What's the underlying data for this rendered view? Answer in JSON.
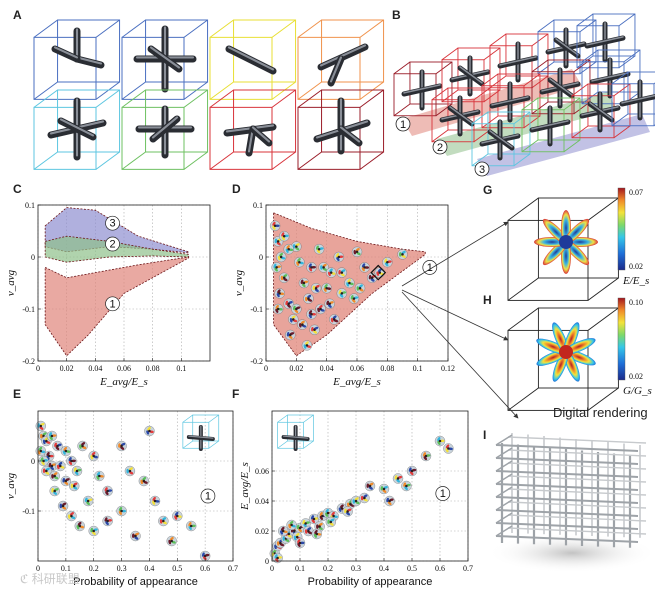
{
  "panels": {
    "A": "A",
    "B": "B",
    "C": "C",
    "D": "D",
    "E": "E",
    "F": "F",
    "G": "G",
    "H": "H",
    "I": "I"
  },
  "regions": {
    "r1": "1",
    "r2": "2",
    "r3": "3"
  },
  "colors": {
    "region1": "#e0857a",
    "region2": "#8fc08a",
    "region3": "#8f8fd0",
    "cell_blue": "#4a6fc0",
    "cell_cyan": "#5cc6e0",
    "cell_green": "#6dc060",
    "cell_yellow": "#e8df33",
    "cell_orange": "#f0924b",
    "cell_red": "#d8333a",
    "cell_darkred": "#9a1c28"
  },
  "chart_data": [
    {
      "id": "C",
      "type": "area",
      "xlabel": "E_avg/E_s",
      "ylabel": "ν_avg",
      "xlim": [
        0,
        0.12
      ],
      "ylim": [
        -0.2,
        0.1
      ],
      "xticks": [
        "0",
        "0.02",
        "0.04",
        "0.06",
        "0.08",
        "0.1"
      ],
      "yticks": [
        "-0.2",
        "-0.1",
        "0",
        "0.1"
      ],
      "series": [
        {
          "name": "1",
          "upper": [
            [
              0.005,
              -0.02
            ],
            [
              0.02,
              -0.04
            ],
            [
              0.04,
              -0.03
            ],
            [
              0.07,
              -0.015
            ],
            [
              0.105,
              0.0
            ]
          ],
          "lower": [
            [
              0.005,
              -0.13
            ],
            [
              0.02,
              -0.19
            ],
            [
              0.035,
              -0.15
            ],
            [
              0.06,
              -0.07
            ],
            [
              0.105,
              -0.002
            ]
          ]
        },
        {
          "name": "2",
          "upper": [
            [
              0.005,
              0.03
            ],
            [
              0.02,
              0.04
            ],
            [
              0.05,
              0.03
            ],
            [
              0.08,
              0.015
            ],
            [
              0.105,
              0.005
            ]
          ],
          "lower": [
            [
              0.005,
              0.0
            ],
            [
              0.02,
              -0.01
            ],
            [
              0.05,
              0.0
            ],
            [
              0.08,
              0.002
            ],
            [
              0.105,
              0.0
            ]
          ]
        },
        {
          "name": "3",
          "upper": [
            [
              0.005,
              0.06
            ],
            [
              0.02,
              0.095
            ],
            [
              0.04,
              0.09
            ],
            [
              0.07,
              0.04
            ],
            [
              0.105,
              0.01
            ]
          ],
          "lower": [
            [
              0.005,
              0.02
            ],
            [
              0.02,
              0.01
            ],
            [
              0.05,
              0.02
            ],
            [
              0.08,
              0.015
            ],
            [
              0.105,
              0.008
            ]
          ]
        }
      ]
    },
    {
      "id": "D",
      "type": "scatter",
      "xlabel": "E_avg/E_s",
      "ylabel": "ν_avg",
      "xlim": [
        0,
        0.12
      ],
      "ylim": [
        -0.2,
        0.1
      ],
      "xticks": [
        "0",
        "0.02",
        "0.04",
        "0.06",
        "0.08",
        "0.1",
        "0.12"
      ],
      "yticks": [
        "-0.2",
        "-0.1",
        "0",
        "0.1"
      ],
      "region_upper": [
        [
          0.005,
          0.085
        ],
        [
          0.03,
          0.055
        ],
        [
          0.06,
          0.03
        ],
        [
          0.09,
          0.015
        ],
        [
          0.105,
          0.01
        ]
      ],
      "region_lower": [
        [
          0.005,
          -0.13
        ],
        [
          0.02,
          -0.19
        ],
        [
          0.04,
          -0.15
        ],
        [
          0.07,
          -0.07
        ],
        [
          0.105,
          0.005
        ]
      ],
      "highlight": [
        0.074,
        -0.03
      ],
      "points": [
        [
          0.006,
          0.06
        ],
        [
          0.008,
          0.03
        ],
        [
          0.01,
          0.0
        ],
        [
          0.007,
          -0.02
        ],
        [
          0.012,
          -0.04
        ],
        [
          0.009,
          -0.07
        ],
        [
          0.015,
          -0.09
        ],
        [
          0.018,
          -0.12
        ],
        [
          0.012,
          0.04
        ],
        [
          0.02,
          0.02
        ],
        [
          0.022,
          -0.01
        ],
        [
          0.025,
          -0.05
        ],
        [
          0.028,
          -0.08
        ],
        [
          0.03,
          -0.11
        ],
        [
          0.032,
          -0.14
        ],
        [
          0.027,
          -0.17
        ],
        [
          0.035,
          0.015
        ],
        [
          0.038,
          -0.02
        ],
        [
          0.04,
          -0.06
        ],
        [
          0.042,
          -0.09
        ],
        [
          0.045,
          -0.12
        ],
        [
          0.048,
          0.0
        ],
        [
          0.05,
          -0.03
        ],
        [
          0.055,
          -0.05
        ],
        [
          0.058,
          -0.08
        ],
        [
          0.06,
          0.01
        ],
        [
          0.065,
          -0.02
        ],
        [
          0.07,
          -0.04
        ],
        [
          0.075,
          -0.03
        ],
        [
          0.08,
          -0.01
        ],
        [
          0.09,
          0.005
        ],
        [
          0.015,
          0.015
        ],
        [
          0.02,
          -0.1
        ],
        [
          0.024,
          -0.13
        ],
        [
          0.03,
          -0.02
        ],
        [
          0.033,
          -0.06
        ],
        [
          0.043,
          -0.03
        ],
        [
          0.05,
          -0.07
        ],
        [
          0.062,
          -0.06
        ],
        [
          0.008,
          -0.1
        ],
        [
          0.016,
          -0.15
        ],
        [
          0.036,
          -0.1
        ]
      ]
    },
    {
      "id": "E",
      "type": "scatter",
      "xlabel": "Probability of appearance",
      "ylabel": "ν_avg",
      "xlim": [
        0,
        0.7
      ],
      "ylim": [
        -0.2,
        0.1
      ],
      "xticks": [
        "0",
        "0.1",
        "0.2",
        "0.3",
        "0.4",
        "0.5",
        "0.6",
        "0.7"
      ],
      "yticks": [
        "-0.1",
        "0"
      ],
      "region_label": "1",
      "points": [
        [
          0.01,
          0.07
        ],
        [
          0.02,
          0.05
        ],
        [
          0.03,
          0.04
        ],
        [
          0.01,
          0.02
        ],
        [
          0.04,
          0.01
        ],
        [
          0.02,
          0.0
        ],
        [
          0.05,
          -0.01
        ],
        [
          0.03,
          -0.02
        ],
        [
          0.06,
          -0.03
        ],
        [
          0.08,
          -0.01
        ],
        [
          0.1,
          0.02
        ],
        [
          0.12,
          0.0
        ],
        [
          0.14,
          -0.02
        ],
        [
          0.1,
          -0.04
        ],
        [
          0.13,
          -0.05
        ],
        [
          0.16,
          0.03
        ],
        [
          0.2,
          0.01
        ],
        [
          0.22,
          -0.03
        ],
        [
          0.25,
          -0.06
        ],
        [
          0.18,
          -0.08
        ],
        [
          0.3,
          0.03
        ],
        [
          0.33,
          -0.02
        ],
        [
          0.38,
          -0.04
        ],
        [
          0.4,
          0.06
        ],
        [
          0.3,
          -0.1
        ],
        [
          0.25,
          -0.12
        ],
        [
          0.2,
          -0.14
        ],
        [
          0.35,
          -0.15
        ],
        [
          0.45,
          -0.12
        ],
        [
          0.48,
          -0.16
        ],
        [
          0.5,
          -0.11
        ],
        [
          0.55,
          -0.13
        ],
        [
          0.6,
          -0.19
        ],
        [
          0.06,
          -0.06
        ],
        [
          0.09,
          -0.09
        ],
        [
          0.12,
          -0.11
        ],
        [
          0.15,
          -0.13
        ],
        [
          0.42,
          -0.08
        ],
        [
          0.05,
          0.05
        ],
        [
          0.07,
          0.03
        ]
      ]
    },
    {
      "id": "F",
      "type": "scatter",
      "xlabel": "Probability of appearance",
      "ylabel": "E_avg/E_s",
      "xlim": [
        0,
        0.7
      ],
      "ylim": [
        0,
        0.1
      ],
      "xticks": [
        "0",
        "0.1",
        "0.2",
        "0.3",
        "0.4",
        "0.5",
        "0.6",
        "0.7"
      ],
      "yticks": [
        "0",
        "0.02",
        "0.04",
        "0.06"
      ],
      "region_label": "1",
      "points": [
        [
          0.01,
          0.005
        ],
        [
          0.02,
          0.01
        ],
        [
          0.03,
          0.012
        ],
        [
          0.05,
          0.015
        ],
        [
          0.06,
          0.018
        ],
        [
          0.08,
          0.02
        ],
        [
          0.1,
          0.022
        ],
        [
          0.12,
          0.025
        ],
        [
          0.15,
          0.028
        ],
        [
          0.18,
          0.03
        ],
        [
          0.2,
          0.032
        ],
        [
          0.22,
          0.03
        ],
        [
          0.25,
          0.035
        ],
        [
          0.28,
          0.038
        ],
        [
          0.3,
          0.04
        ],
        [
          0.33,
          0.042
        ],
        [
          0.35,
          0.05
        ],
        [
          0.4,
          0.048
        ],
        [
          0.45,
          0.055
        ],
        [
          0.5,
          0.06
        ],
        [
          0.55,
          0.07
        ],
        [
          0.6,
          0.08
        ],
        [
          0.63,
          0.075
        ],
        [
          0.04,
          0.02
        ],
        [
          0.07,
          0.024
        ],
        [
          0.09,
          0.016
        ],
        [
          0.13,
          0.02
        ],
        [
          0.17,
          0.023
        ],
        [
          0.21,
          0.026
        ],
        [
          0.27,
          0.033
        ],
        [
          0.42,
          0.04
        ],
        [
          0.48,
          0.05
        ],
        [
          0.02,
          0.002
        ],
        [
          0.1,
          0.012
        ],
        [
          0.16,
          0.018
        ]
      ]
    },
    {
      "id": "G",
      "type": "heatmap",
      "colorbar_label": "E/E_s",
      "colorbar_max": "0.07",
      "colorbar_min": "0.02"
    },
    {
      "id": "H",
      "type": "heatmap",
      "colorbar_label": "G/G_s",
      "colorbar_max": "0.10",
      "colorbar_min": "0.02"
    }
  ],
  "render_caption": "Digital rendering",
  "watermark": "ℭ 科研联盟"
}
